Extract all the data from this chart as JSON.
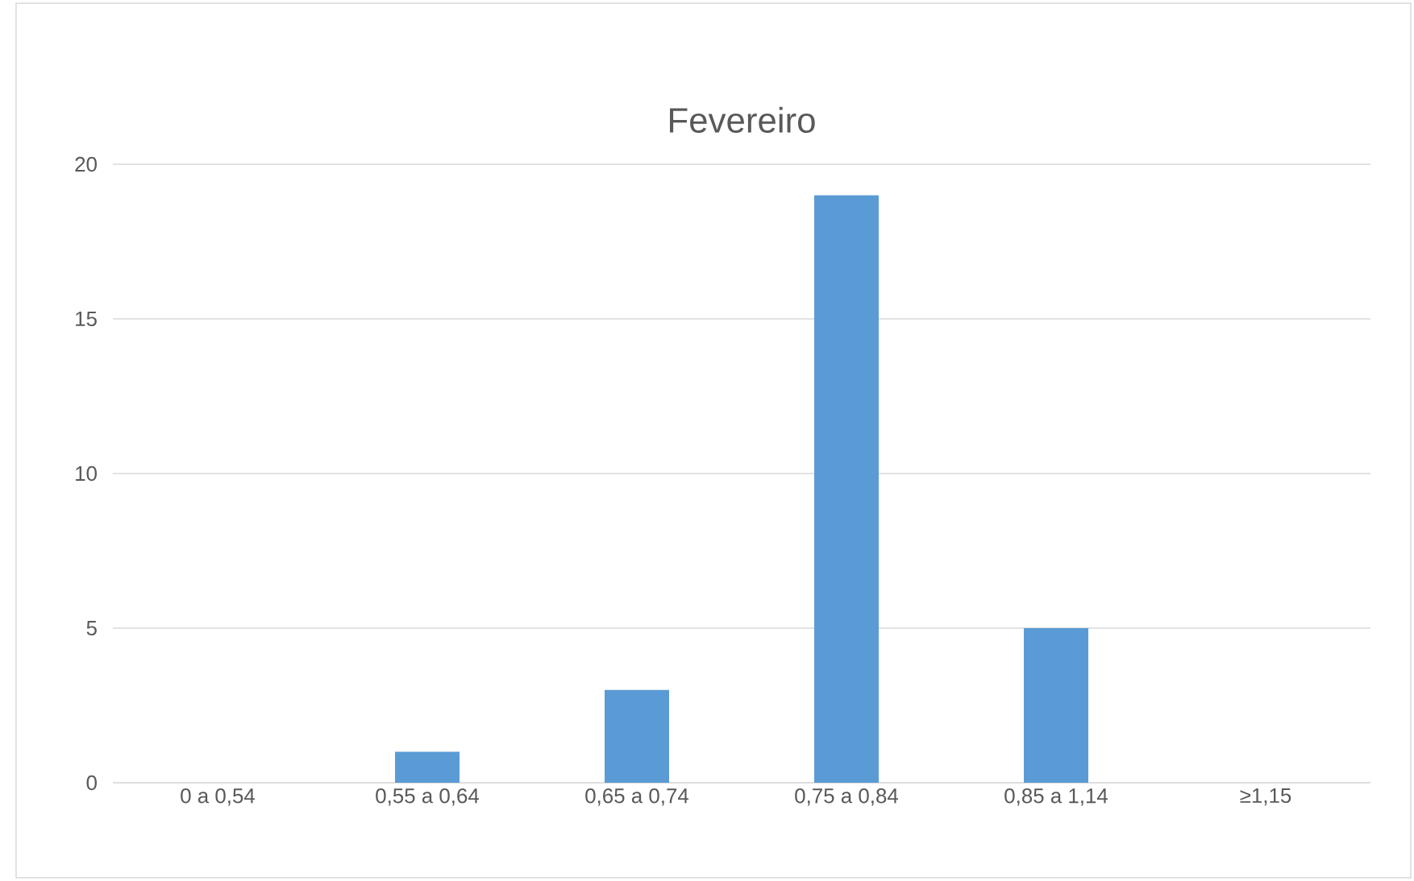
{
  "chart_data": {
    "type": "bar",
    "title": "Fevereiro",
    "categories": [
      "0 a 0,54",
      "0,55 a 0,64",
      "0,65 a 0,74",
      "0,75 a 0,84",
      "0,85 a 1,14",
      "≥1,15"
    ],
    "values": [
      0,
      1,
      3,
      19,
      5,
      0
    ],
    "color": "#5b9bd5",
    "ylim": [
      0,
      20
    ],
    "yticks": [
      0,
      5,
      10,
      15,
      20
    ],
    "grid": "y"
  }
}
